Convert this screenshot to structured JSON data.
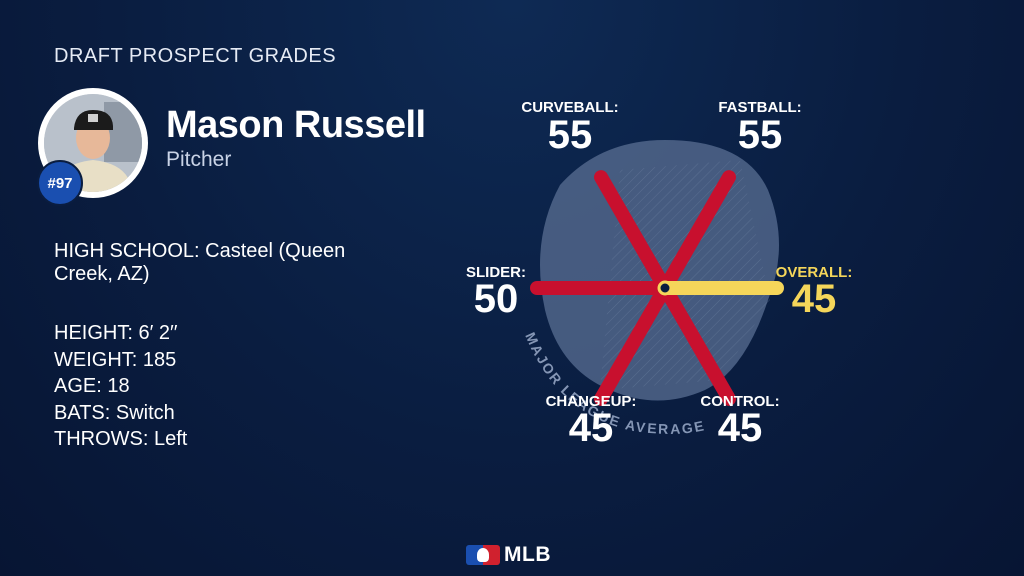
{
  "header": {
    "title": "DRAFT PROSPECT GRADES"
  },
  "player": {
    "rank_badge": "#97",
    "name": "Mason Russell",
    "position": "Pitcher"
  },
  "info": {
    "high_school": "HIGH SCHOOL: Casteel (Queen Creek, AZ)",
    "height": "HEIGHT: 6′ 2′′",
    "weight": "WEIGHT: 185",
    "age": "AGE: 18",
    "bats": "BATS: Switch",
    "throws": "THROWS: Left"
  },
  "chart_data": {
    "type": "radial-grades",
    "reference_label": "MAJOR LEAGUE AVERAGE",
    "reference_value": 50,
    "scale_max": 80,
    "grades": [
      {
        "label": "FASTBALL:",
        "value": "55",
        "angle": 300
      },
      {
        "label": "CURVEBALL:",
        "value": "55",
        "angle": 240
      },
      {
        "label": "SLIDER:",
        "value": "50",
        "angle": 180
      },
      {
        "label": "CHANGEUP:",
        "value": "45",
        "angle": 120
      },
      {
        "label": "CONTROL:",
        "value": "45",
        "angle": 60
      },
      {
        "label": "OVERALL:",
        "value": "45",
        "angle": 0
      }
    ],
    "colors": {
      "grade_line": "#c8102e",
      "overall_line": "#f5d65a",
      "overall_text": "#f5d65a",
      "area": "#5a6f93"
    }
  },
  "footer": {
    "logo_text": "MLB"
  }
}
